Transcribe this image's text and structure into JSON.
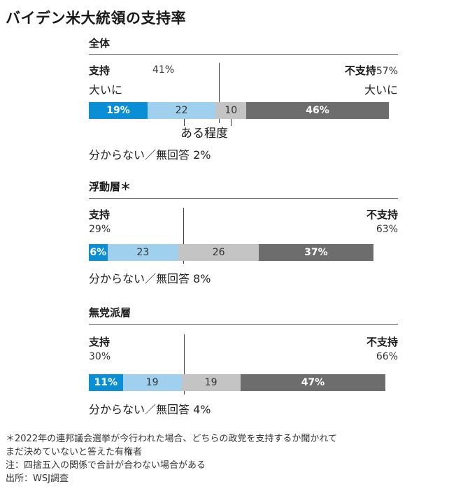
{
  "title": "バイデン米大統領の支持率",
  "colors": {
    "strong_support": "#0a8fd6",
    "some_support": "#9fd0ee",
    "some_oppose": "#c4c4c4",
    "strong_oppose": "#6d6d6d"
  },
  "labels": {
    "support": "支持",
    "oppose": "不支持",
    "strong": "大いに",
    "somewhat": "ある程度"
  },
  "chart_data": [
    {
      "type": "bar",
      "title": "全体",
      "support_total": "41%",
      "oppose_total": "57%",
      "segments": [
        {
          "label": "19%",
          "value": 19,
          "color": "#0a8fd6",
          "text": "light"
        },
        {
          "label": "22",
          "value": 22,
          "color": "#9fd0ee",
          "text": "dark"
        },
        {
          "label": "10",
          "value": 10,
          "color": "#c4c4c4",
          "text": "dark"
        },
        {
          "label": "46%",
          "value": 46,
          "color": "#6d6d6d",
          "text": "light"
        }
      ],
      "unknown_label": "分からない／無回答",
      "unknown": "2%"
    },
    {
      "type": "bar",
      "title": "浮動層＊",
      "support_total": "29%",
      "oppose_total": "63%",
      "segments": [
        {
          "label": "6%",
          "value": 6,
          "color": "#0a8fd6",
          "text": "light"
        },
        {
          "label": "23",
          "value": 23,
          "color": "#9fd0ee",
          "text": "dark"
        },
        {
          "label": "26",
          "value": 26,
          "color": "#c4c4c4",
          "text": "dark"
        },
        {
          "label": "37%",
          "value": 37,
          "color": "#6d6d6d",
          "text": "light"
        }
      ],
      "unknown_label": "分からない／無回答",
      "unknown": "8%"
    },
    {
      "type": "bar",
      "title": "無党派層",
      "support_total": "30%",
      "oppose_total": "66%",
      "segments": [
        {
          "label": "11%",
          "value": 11,
          "color": "#0a8fd6",
          "text": "light"
        },
        {
          "label": "19",
          "value": 19,
          "color": "#9fd0ee",
          "text": "dark"
        },
        {
          "label": "19",
          "value": 19,
          "color": "#c4c4c4",
          "text": "dark"
        },
        {
          "label": "47%",
          "value": 47,
          "color": "#6d6d6d",
          "text": "light"
        }
      ],
      "unknown_label": "分からない／無回答",
      "unknown": "4%"
    }
  ],
  "footnotes": [
    "＊2022年の連邦議会選挙が今行われた場合、どちらの政党を支持するか聞かれて",
    "まだ決めていないと答えた有権者",
    "注：四捨五入の関係で合計が合わない場合がある",
    "出所：WSJ調査"
  ]
}
